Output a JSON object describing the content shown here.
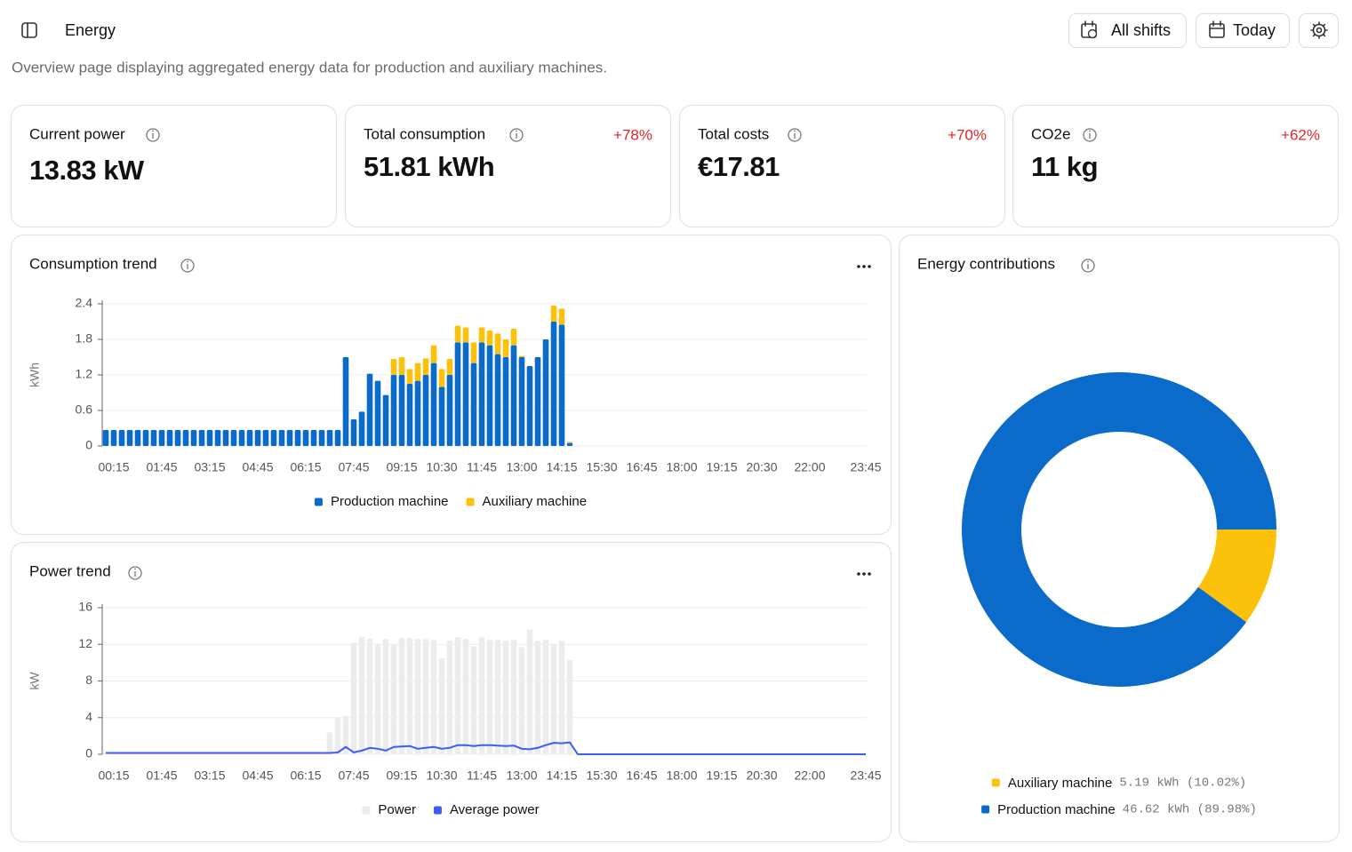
{
  "header": {
    "title": "Energy",
    "description": "Overview page displaying aggregated energy data for production and auxiliary machines.",
    "buttons": [
      "All shifts",
      "Today"
    ]
  },
  "kpis": [
    {
      "label": "Current power",
      "value": "13.83 kW"
    },
    {
      "label": "Total consumption",
      "value": "51.81 kWh",
      "change": "+78%"
    },
    {
      "label": "Total costs",
      "value": "€17.81",
      "change": "+70%"
    },
    {
      "label": "CO2e",
      "value": "11 kg",
      "change": "+62%"
    }
  ],
  "chart_data": [
    {
      "type": "bar",
      "stacked": true,
      "title": "Consumption trend",
      "y_label": "kWh",
      "categories": [
        null,
        "00:15",
        null,
        null,
        null,
        null,
        null,
        "01:45",
        null,
        null,
        null,
        null,
        null,
        "03:15",
        null,
        null,
        null,
        null,
        null,
        "04:45",
        null,
        null,
        null,
        null,
        null,
        "06:15",
        null,
        null,
        null,
        null,
        null,
        "07:45",
        null,
        null,
        null,
        null,
        null,
        "09:15",
        null,
        null,
        null,
        null,
        "10:30",
        null,
        null,
        null,
        null,
        "11:45",
        null,
        null,
        null,
        null,
        "13:00",
        null,
        null,
        null,
        null,
        "14:15",
        null,
        null,
        null,
        null,
        "15:30",
        null,
        null,
        null,
        null,
        "16:45",
        null,
        null,
        null,
        null,
        "18:00",
        null,
        null,
        null,
        null,
        "19:15",
        null,
        null,
        null,
        null,
        "20:30",
        null,
        null,
        null,
        null,
        null,
        "22:00",
        null,
        null,
        null,
        null,
        null,
        null,
        "23:45"
      ],
      "series": [
        {
          "name": "Production machine",
          "color": "#0b6bcb",
          "values": [
            0.27,
            0.27,
            0.27,
            0.27,
            0.27,
            0.27,
            0.27,
            0.27,
            0.27,
            0.27,
            0.27,
            0.27,
            0.27,
            0.27,
            0.27,
            0.27,
            0.27,
            0.27,
            0.27,
            0.27,
            0.27,
            0.27,
            0.27,
            0.27,
            0.27,
            0.27,
            0.27,
            0.27,
            0.27,
            0.27,
            1.5,
            0.45,
            0.58,
            1.22,
            1.1,
            0.86,
            1.2,
            1.2,
            1.05,
            1.1,
            1.2,
            1.4,
            1.0,
            1.2,
            1.75,
            1.75,
            1.4,
            1.75,
            1.7,
            1.55,
            1.5,
            1.7,
            1.5,
            1.35,
            1.5,
            1.8,
            2.1,
            2.05,
            0.05,
            null,
            null,
            null,
            null,
            null,
            null,
            null,
            null,
            null,
            null,
            null,
            null,
            null,
            null,
            null,
            null,
            null,
            null,
            null,
            null,
            null,
            null,
            null,
            null,
            null,
            null,
            null,
            null,
            null,
            null,
            null,
            null,
            null,
            null,
            null,
            null,
            null
          ]
        },
        {
          "name": "Auxiliary machine",
          "color": "#fbc10b",
          "values": [
            0,
            0,
            0,
            0,
            0,
            0,
            0,
            0,
            0,
            0,
            0,
            0,
            0,
            0,
            0,
            0,
            0,
            0,
            0,
            0,
            0,
            0,
            0,
            0,
            0,
            0,
            0,
            0,
            0,
            0,
            0,
            0,
            0,
            0,
            0,
            0,
            0.27,
            0.3,
            0.25,
            0.3,
            0.28,
            0.3,
            0.3,
            0.27,
            0.28,
            0.25,
            0.35,
            0.25,
            0.25,
            0.35,
            0.3,
            0.28,
            0.02,
            0,
            0,
            0,
            0.27,
            0.27,
            0.02,
            null,
            null,
            null,
            null,
            null,
            null,
            null,
            null,
            null,
            null,
            null,
            null,
            null,
            null,
            null,
            null,
            null,
            null,
            null,
            null,
            null,
            null,
            null,
            null,
            null,
            null,
            null,
            null,
            null,
            null,
            null,
            null,
            null,
            null,
            null,
            null,
            null
          ]
        }
      ],
      "ylim": [
        0,
        2.4
      ],
      "yticks": [
        0,
        0.6,
        1.2,
        1.8,
        2.4
      ],
      "grid": true
    },
    {
      "type": "combo",
      "title": "Power trend",
      "y_label": "kW",
      "categories": [
        null,
        "00:15",
        null,
        null,
        null,
        null,
        null,
        "01:45",
        null,
        null,
        null,
        null,
        null,
        "03:15",
        null,
        null,
        null,
        null,
        null,
        "04:45",
        null,
        null,
        null,
        null,
        null,
        "06:15",
        null,
        null,
        null,
        null,
        null,
        "07:45",
        null,
        null,
        null,
        null,
        null,
        "09:15",
        null,
        null,
        null,
        null,
        "10:30",
        null,
        null,
        null,
        null,
        "11:45",
        null,
        null,
        null,
        null,
        "13:00",
        null,
        null,
        null,
        null,
        "14:15",
        null,
        null,
        null,
        null,
        "15:30",
        null,
        null,
        null,
        null,
        "16:45",
        null,
        null,
        null,
        null,
        "18:00",
        null,
        null,
        null,
        null,
        "19:15",
        null,
        null,
        null,
        null,
        "20:30",
        null,
        null,
        null,
        null,
        null,
        "22:00",
        null,
        null,
        null,
        null,
        null,
        null,
        "23:45"
      ],
      "series": [
        {
          "name": "Power",
          "type": "bar",
          "color": "#ececec",
          "values": [
            0.2,
            0.2,
            0.2,
            0.2,
            0.2,
            0.2,
            0.2,
            0.2,
            0.2,
            0.2,
            0.2,
            0.2,
            0.2,
            0.2,
            0.2,
            0.2,
            0.2,
            0.2,
            0.2,
            0.2,
            0.2,
            0.2,
            0.2,
            0.2,
            0.2,
            0.2,
            0.2,
            0.2,
            2.4,
            4.0,
            4.2,
            12.2,
            12.8,
            12.6,
            12,
            12.6,
            12,
            12.7,
            12.7,
            12.6,
            12.6,
            12.5,
            10.5,
            12.4,
            12.8,
            12.6,
            11.8,
            12.8,
            12.5,
            12.5,
            12.4,
            12.5,
            11.7,
            13.6,
            12.4,
            12.5,
            12,
            12.4,
            10.3,
            null,
            null,
            null,
            null,
            null,
            null,
            null,
            null,
            null,
            null,
            null,
            null,
            null,
            null,
            null,
            null,
            null,
            null,
            null,
            null,
            null,
            null,
            null,
            null,
            null,
            null,
            null,
            null,
            null,
            null,
            null,
            null,
            null,
            null,
            null,
            null,
            null
          ]
        },
        {
          "name": "Average power",
          "type": "line",
          "color": "#3d5cf5",
          "values": [
            0.15,
            0.15,
            0.15,
            0.15,
            0.15,
            0.15,
            0.15,
            0.15,
            0.15,
            0.15,
            0.15,
            0.15,
            0.15,
            0.15,
            0.15,
            0.15,
            0.15,
            0.15,
            0.15,
            0.15,
            0.15,
            0.15,
            0.15,
            0.15,
            0.15,
            0.15,
            0.15,
            0.15,
            0.15,
            0.2,
            0.8,
            0.2,
            0.4,
            0.7,
            0.6,
            0.4,
            0.8,
            0.85,
            0.9,
            0.6,
            0.7,
            0.8,
            0.6,
            0.7,
            1.0,
            1.0,
            0.9,
            1.0,
            1.0,
            0.95,
            0.9,
            0.95,
            0.6,
            0.55,
            0.7,
            1.0,
            1.25,
            1.2,
            1.3,
            0,
            0,
            0,
            0,
            0,
            0,
            0,
            0,
            0,
            0,
            0,
            0,
            0,
            0,
            0,
            0,
            0,
            0,
            0,
            0,
            0,
            0,
            0,
            0,
            0,
            0,
            0,
            0,
            0,
            0,
            0,
            0,
            0,
            0,
            0,
            0,
            0
          ]
        }
      ],
      "ylim": [
        0,
        16
      ],
      "yticks": [
        0,
        4,
        8,
        12,
        16
      ],
      "grid": true
    },
    {
      "type": "donut",
      "title": "Energy contributions",
      "categories": [
        "Auxiliary machine",
        "Production machine"
      ],
      "values": [
        5.19,
        46.62
      ],
      "value_labels": [
        "5.19 kWh (10.02%)",
        "46.62 kWh (89.98%)"
      ],
      "colors": [
        "#fbc10b",
        "#0b6bcb"
      ]
    }
  ]
}
